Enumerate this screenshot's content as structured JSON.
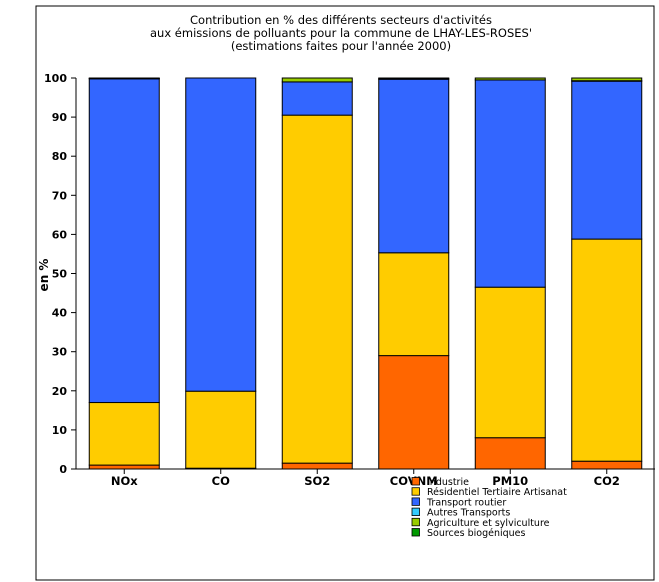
{
  "chart_data": {
    "type": "bar",
    "stacked": true,
    "title": [
      "Contribution en % des différents secteurs d'activités",
      "aux émissions de polluants pour la commune de LHAY-LES-ROSES'",
      "(estimations faites pour l'année 2000)"
    ],
    "xlabel": "",
    "ylabel": "en %",
    "ylim": [
      0,
      100
    ],
    "yticks": [
      0,
      10,
      20,
      30,
      40,
      50,
      60,
      70,
      80,
      90,
      100
    ],
    "categories": [
      "NOx",
      "CO",
      "SO2",
      "COVNM",
      "PM10",
      "CO2"
    ],
    "series": [
      {
        "name": "Industrie",
        "color": "#ff6600",
        "values": [
          1,
          0.2,
          1.5,
          29,
          8,
          2
        ]
      },
      {
        "name": "Résidentiel Tertiaire Artisanat",
        "color": "#ffcc00",
        "values": [
          16,
          19.7,
          89,
          26.3,
          38.5,
          56.8
        ]
      },
      {
        "name": "Transport routier",
        "color": "#3366ff",
        "values": [
          82.8,
          80.1,
          8.5,
          44.4,
          53,
          40.4
        ]
      },
      {
        "name": "Autres Transports",
        "color": "#33ccff",
        "values": [
          0.1,
          0,
          0,
          0.1,
          0,
          0.1
        ]
      },
      {
        "name": "Agriculture et sylviculture",
        "color": "#99cc00",
        "values": [
          0,
          0,
          1,
          0,
          0.5,
          0.7
        ]
      },
      {
        "name": "Sources biogéniques",
        "color": "#009900",
        "values": [
          0.1,
          0,
          0,
          0.2,
          0,
          0
        ]
      }
    ],
    "grid": false,
    "legend_position": "bottom-center"
  }
}
